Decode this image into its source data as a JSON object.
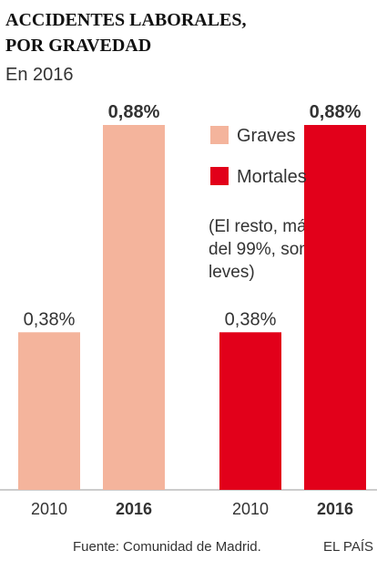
{
  "chart_data": {
    "type": "bar",
    "title": [
      "ACCIDENTES LABORALES,",
      "POR GRAVEDAD"
    ],
    "subtitle": "En 2016",
    "categories": [
      "2010",
      "2016"
    ],
    "series": [
      {
        "name": "Graves",
        "color": "#f4b49c",
        "values": [
          0.38,
          0.88
        ],
        "value_labels": [
          "0,38%",
          "0,88%"
        ]
      },
      {
        "name": "Mortales",
        "color": "#e2001a",
        "values": [
          0.38,
          0.88
        ],
        "value_labels": [
          "0,38%",
          "0,88%"
        ]
      }
    ],
    "ylim": [
      0,
      0.88
    ],
    "note": [
      "(El resto, más",
      "del 99%, son",
      "leves)"
    ],
    "source": "Fuente: Comunidad de Madrid.",
    "credit": "EL PAÍS"
  }
}
